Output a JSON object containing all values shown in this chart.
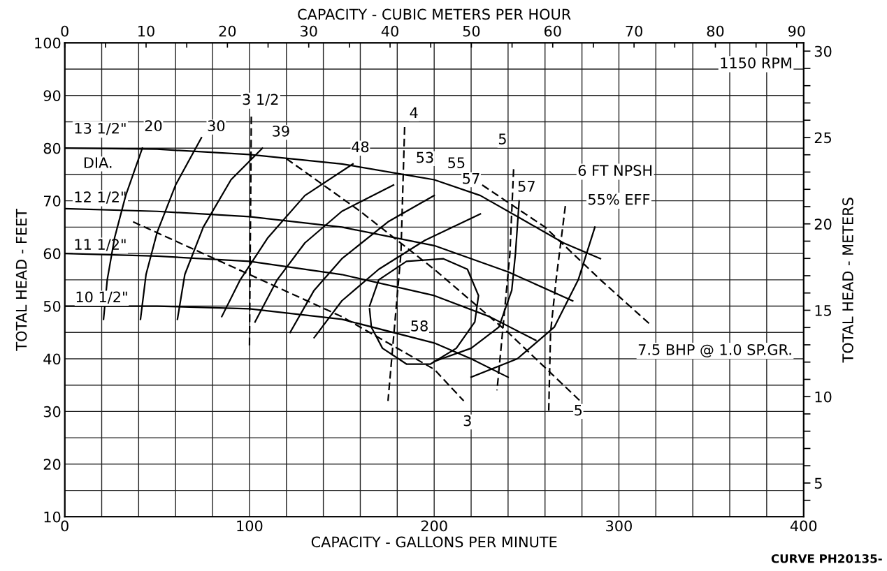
{
  "chart_data": {
    "type": "line",
    "xlabel": "CAPACITY - GALLONS PER MINUTE",
    "ylabel": "TOTAL HEAD - FEET",
    "y2label": "TOTAL HEAD - METERS",
    "x2label": "CAPACITY - CUBIC METERS PER HOUR",
    "xlim": [
      0,
      400
    ],
    "xticks": [
      0,
      {
        "value": 20,
        "label": null
      },
      {
        "value": 40,
        "label": null
      },
      {
        "value": 60,
        "label": null
      },
      {
        "value": 80,
        "label": null
      },
      100,
      {
        "value": 120,
        "label": null
      },
      {
        "value": 140,
        "label": null
      },
      {
        "value": 160,
        "label": null
      },
      {
        "value": 180,
        "label": null
      },
      200,
      {
        "value": 220,
        "label": null
      },
      {
        "value": 240,
        "label": null
      },
      {
        "value": 260,
        "label": null
      },
      {
        "value": 280,
        "label": null
      },
      300,
      {
        "value": 320,
        "label": null
      },
      {
        "value": 340,
        "label": null
      },
      {
        "value": 360,
        "label": null
      },
      {
        "value": 380,
        "label": null
      },
      400
    ],
    "ylim": [
      10,
      100
    ],
    "yticks": [
      10,
      {
        "value": 15,
        "label": null
      },
      20,
      {
        "value": 25,
        "label": null
      },
      30,
      {
        "value": 35,
        "label": null
      },
      40,
      {
        "value": 45,
        "label": null
      },
      50,
      {
        "value": 55,
        "label": null
      },
      60,
      {
        "value": 65,
        "label": null
      },
      70,
      {
        "value": 75,
        "label": null
      },
      80,
      {
        "value": 85,
        "label": null
      },
      90,
      {
        "value": 95,
        "label": null
      },
      100
    ],
    "x2lim": [
      0,
      90.85
    ],
    "x2ticks": [
      0,
      {
        "value": 5,
        "label": null
      },
      10,
      {
        "value": 15,
        "label": null
      },
      20,
      {
        "value": 25,
        "label": null
      },
      30,
      {
        "value": 35,
        "label": null
      },
      40,
      {
        "value": 45,
        "label": null
      },
      50,
      {
        "value": 55,
        "label": null
      },
      60,
      {
        "value": 65,
        "label": null
      },
      70,
      {
        "value": 75,
        "label": null
      },
      80,
      {
        "value": 85,
        "label": null
      },
      90
    ],
    "y2lim": [
      3.048,
      30.48
    ],
    "y2ticks": [
      {
        "value": 4,
        "label": null
      },
      5,
      {
        "value": 6,
        "label": null
      },
      {
        "value": 7,
        "label": null
      },
      {
        "value": 8,
        "label": null
      },
      {
        "value": 9,
        "label": null
      },
      10,
      {
        "value": 11,
        "label": null
      },
      {
        "value": 12,
        "label": null
      },
      {
        "value": 13,
        "label": null
      },
      {
        "value": 14,
        "label": null
      },
      15,
      {
        "value": 16,
        "label": null
      },
      {
        "value": 17,
        "label": null
      },
      {
        "value": 18,
        "label": null
      },
      {
        "value": 19,
        "label": null
      },
      20,
      {
        "value": 21,
        "label": null
      },
      {
        "value": 22,
        "label": null
      },
      {
        "value": 23,
        "label": null
      },
      {
        "value": 24,
        "label": null
      },
      25,
      {
        "value": 26,
        "label": null
      },
      {
        "value": 27,
        "label": null
      },
      {
        "value": 28,
        "label": null
      },
      {
        "value": 29,
        "label": null
      },
      30
    ],
    "grid": true,
    "marker": "none",
    "series": [
      {
        "color": "#000000",
        "line_style": "solid",
        "x": [
          0,
          50,
          100,
          150,
          200,
          225,
          250,
          270,
          290
        ],
        "values": [
          80,
          79.8,
          78.8,
          77,
          74,
          71,
          66,
          62,
          59
        ]
      },
      {
        "color": "#000000",
        "line_style": "solid",
        "x": [
          0,
          50,
          100,
          150,
          200,
          240,
          275
        ],
        "values": [
          68.5,
          68,
          67,
          65,
          61.5,
          56.5,
          51
        ]
      },
      {
        "color": "#000000",
        "line_style": "solid",
        "x": [
          0,
          50,
          100,
          150,
          200,
          230,
          255
        ],
        "values": [
          60,
          59.5,
          58.5,
          56,
          52,
          48,
          43.5
        ]
      },
      {
        "color": "#000000",
        "line_style": "solid",
        "x": [
          0,
          50,
          100,
          150,
          200,
          220,
          240
        ],
        "values": [
          50,
          50,
          49.5,
          47.5,
          43,
          40,
          36.5
        ]
      },
      {
        "color": "#000000",
        "line_style": "solid",
        "x": [
          21,
          23,
          27,
          33,
          42
        ],
        "values": [
          47.5,
          55,
          63,
          71,
          80
        ]
      },
      {
        "color": "#000000",
        "line_style": "solid",
        "x": [
          41,
          44,
          50,
          60,
          74
        ],
        "values": [
          47.5,
          56,
          64,
          73,
          82
        ]
      },
      {
        "color": "#000000",
        "line_style": "solid",
        "x": [
          61,
          65,
          75,
          90,
          107
        ],
        "values": [
          47.5,
          56,
          65,
          74,
          80
        ]
      },
      {
        "color": "#000000",
        "line_style": "solid",
        "x": [
          85,
          95,
          110,
          130,
          156
        ],
        "values": [
          48,
          55,
          63,
          71,
          77
        ]
      },
      {
        "color": "#000000",
        "line_style": "solid",
        "x": [
          103,
          115,
          130,
          150,
          178
        ],
        "values": [
          47,
          55,
          62,
          68,
          73
        ]
      },
      {
        "color": "#000000",
        "line_style": "solid",
        "x": [
          122,
          135,
          150,
          175,
          200
        ],
        "values": [
          45,
          53,
          59,
          66,
          71
        ]
      },
      {
        "color": "#000000",
        "line_style": "solid",
        "x": [
          135,
          150,
          170,
          195,
          225
        ],
        "values": [
          44,
          51,
          57,
          62.5,
          67.5
        ]
      },
      {
        "color": "#000000",
        "line_style": "solid",
        "x": [
          200,
          220,
          235,
          242,
          244,
          246
        ],
        "values": [
          39.5,
          42,
          46,
          53,
          60,
          70
        ]
      },
      {
        "color": "#000000",
        "line_style": "solid",
        "x": [
          220,
          245,
          265,
          278,
          287
        ],
        "values": [
          36.5,
          40,
          46,
          55,
          65
        ]
      },
      {
        "color": "#000000",
        "line_style": "solid",
        "x": [
          165,
          170,
          185,
          205,
          218,
          224,
          222,
          212,
          198,
          185,
          172,
          166,
          165
        ],
        "values": [
          50,
          55,
          58.5,
          59,
          57,
          52,
          47,
          42,
          39,
          39,
          42,
          46,
          49.5
        ]
      },
      {
        "color": "#000000",
        "line_style": "dashed",
        "x": [
          101,
          100
        ],
        "values": [
          86,
          42
        ]
      },
      {
        "color": "#000000",
        "line_style": "dashed",
        "x": [
          184,
          182,
          175
        ],
        "values": [
          84,
          60,
          32
        ]
      },
      {
        "color": "#000000",
        "line_style": "dashed",
        "x": [
          243,
          241,
          237,
          234
        ],
        "values": [
          76,
          60,
          45,
          34
        ]
      },
      {
        "color": "#000000",
        "line_style": "dashed",
        "x": [
          271,
          266,
          263,
          262
        ],
        "values": [
          69,
          55,
          45,
          30
        ]
      },
      {
        "color": "#000000",
        "line_style": "dashed",
        "x": [
          37,
          100,
          150,
          200,
          216
        ],
        "values": [
          66,
          56,
          48,
          38,
          32
        ]
      },
      {
        "color": "#000000",
        "line_style": "dashed",
        "x": [
          120,
          160,
          200,
          240,
          279
        ],
        "values": [
          78,
          68,
          57,
          45,
          32
        ]
      },
      {
        "color": "#000000",
        "line_style": "dashed",
        "x": [
          226,
          260,
          290,
          317
        ],
        "values": [
          73,
          65,
          55,
          46.5
        ]
      }
    ],
    "annotations": [
      "13 1/2\"",
      {
        "text": "DIA.",
        "x": 18,
        "y": 77
      },
      "12 1/2\"",
      "11 1/2\"",
      {
        "text": "10 1/2\"",
        "x": 20,
        "y": 51.5
      },
      {
        "text": "20",
        "x": 48,
        "y": 84
      },
      {
        "text": "30",
        "x": 82,
        "y": 84
      },
      "3 1/2",
      {
        "text": "39",
        "x": 117,
        "y": 83
      },
      {
        "text": "48",
        "x": 160,
        "y": 80
      },
      {
        "text": "4",
        "x": 189,
        "y": 86.5
      },
      {
        "text": "53",
        "x": 195,
        "y": 78
      },
      {
        "text": "55",
        "x": 212,
        "y": 77
      },
      {
        "text": "5",
        "x": 237,
        "y": 81.5
      },
      {
        "text": "57",
        "x": 220,
        "y": 74
      },
      {
        "text": "57",
        "x": 250,
        "y": 72.5
      },
      "6 FT NPSH",
      "55% EFF",
      {
        "text": "58",
        "x": 192,
        "y": 46
      },
      "7.5 BHP @ 1.0 SP.GR.",
      {
        "text": "3",
        "x": 218,
        "y": 28
      },
      {
        "text": "5",
        "x": 278,
        "y": 30
      },
      "1150 RPM",
      "CURVE PH20135-"
    ]
  }
}
